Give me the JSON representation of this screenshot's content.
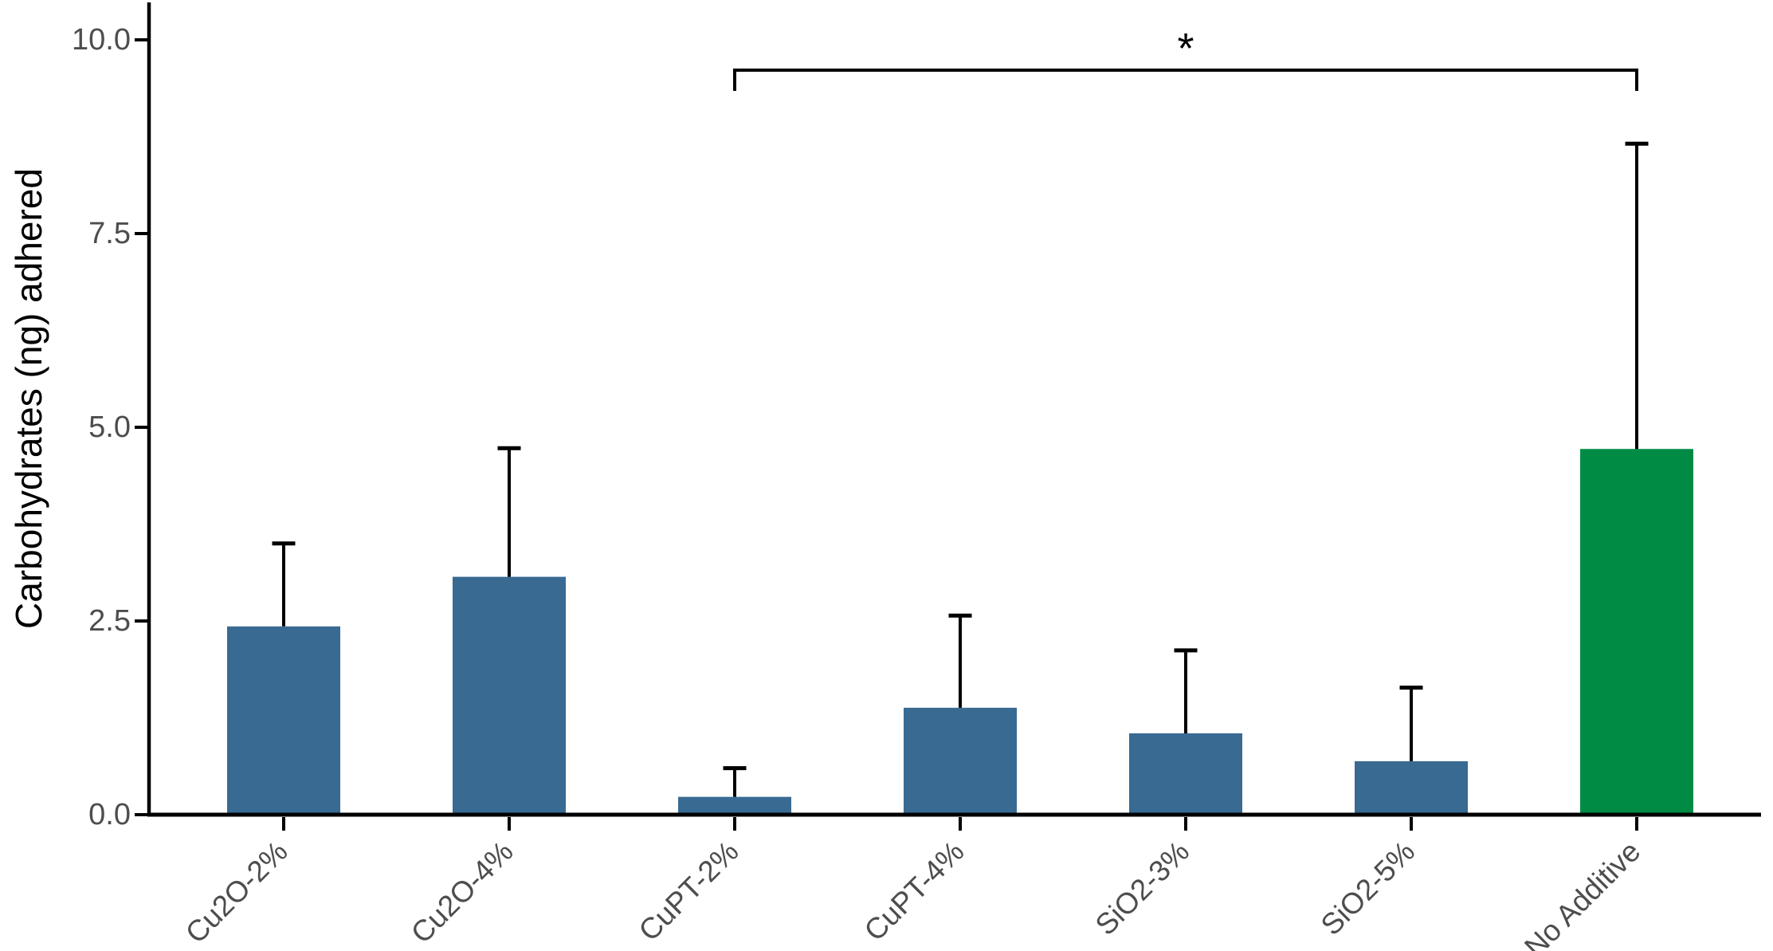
{
  "chart_data": {
    "type": "bar",
    "title": "",
    "xlabel": "",
    "ylabel": "Carbohydrates (ng) adhered",
    "categories": [
      "Cu2O-2%",
      "Cu2O-4%",
      "CuPT-2%",
      "CuPT-4%",
      "SiO2-3%",
      "SiO2-5%",
      "No Additive"
    ],
    "values": [
      2.43,
      3.07,
      0.23,
      1.38,
      1.05,
      0.69,
      4.72
    ],
    "error_upper": [
      3.5,
      4.73,
      0.6,
      2.57,
      2.12,
      1.64,
      8.66
    ],
    "bar_colors": [
      "#386A92",
      "#386A92",
      "#386A92",
      "#386A92",
      "#386A92",
      "#386A92",
      "#008B45"
    ],
    "y_ticks": {
      "labels": [
        "0.0",
        "2.5",
        "5.0",
        "7.5",
        "10.0"
      ],
      "values": [
        0,
        2.5,
        5,
        7.5,
        10
      ]
    },
    "ylim": [
      0,
      10.5
    ],
    "grid": "off",
    "legend": "none",
    "error_bar_style": "upper-only-with-cap",
    "significance": {
      "label": "*",
      "from_category": "CuPT-2%",
      "to_category": "No Additive"
    }
  },
  "colors": {
    "bar_blue": "#386A92",
    "bar_green": "#008B45",
    "axis_line": "#000000",
    "error_bar": "#000000",
    "tick_label": "#4d4d4d",
    "axis_title": "#000000",
    "significance": "#000000",
    "background": "#ffffff"
  }
}
